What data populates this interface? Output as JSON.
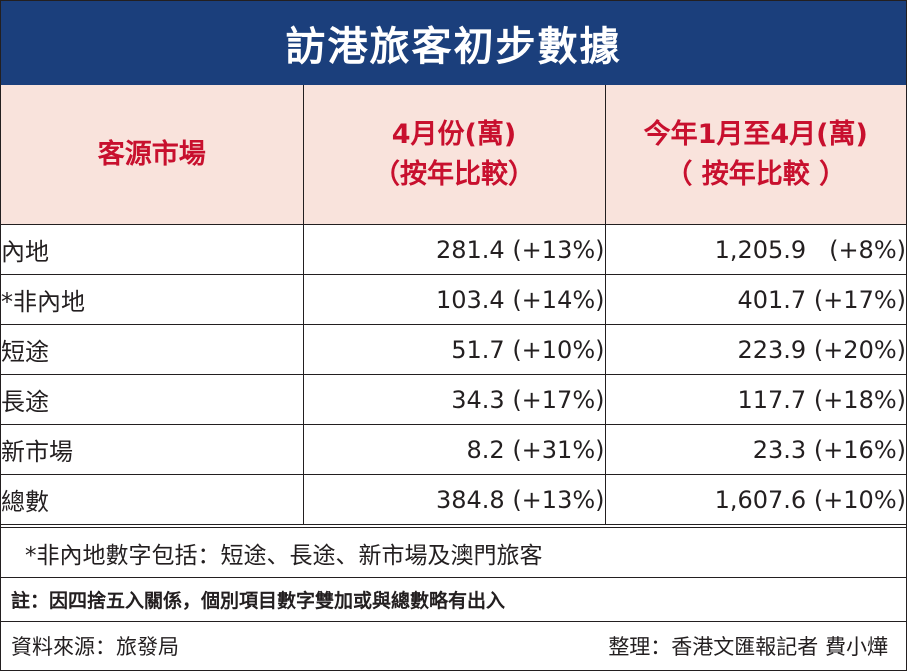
{
  "title": "訪港旅客初步數據",
  "table": {
    "headers": {
      "market": "客源市場",
      "april_line1": "4月份(萬)",
      "april_line2": "（按年比較）",
      "ytd_line1": "今年1月至4月(萬)",
      "ytd_line2": "（ 按年比較 ）"
    },
    "rows": [
      {
        "market": "內地",
        "april": "281.4 (+13%)",
        "ytd": "1,205.9   (+8%)"
      },
      {
        "market": "*非內地",
        "april": "103.4 (+14%)",
        "ytd": "401.7 (+17%)"
      },
      {
        "market": "短途",
        "april": "51.7 (+10%)",
        "ytd": "223.9 (+20%)"
      },
      {
        "market": "長途",
        "april": "34.3 (+17%)",
        "ytd": "117.7 (+18%)"
      },
      {
        "market": "新市場",
        "april": "8.2 (+31%)",
        "ytd": "23.3 (+16%)"
      },
      {
        "market": "總數",
        "april": "384.8 (+13%)",
        "ytd": "1,607.6 (+10%)"
      }
    ]
  },
  "footnote": "*非內地數字包括：短途、長途、新市場及澳門旅客",
  "note": "註：因四捨五入關係，個別項目數字雙加或與總數略有出入",
  "source": "資料來源：旅發局",
  "credit": "整理：香港文匯報記者 費小燁",
  "colors": {
    "title_bg": "#1b3f7c",
    "header_bg": "#f9e3dc",
    "header_text": "#c8102e"
  }
}
